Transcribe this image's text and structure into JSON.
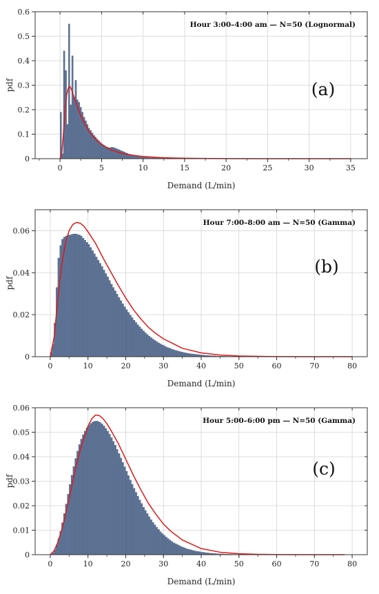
{
  "chart_data": [
    {
      "type": "bar",
      "panel_label": "(a)",
      "title": "Hour 3:00–4:00 am — N=50 (Lognormal)",
      "xlabel": "Demand (L/min)",
      "ylabel": "pdf",
      "xlim": [
        -3,
        37
      ],
      "ylim": [
        0,
        0.6
      ],
      "xticks": [
        0,
        5,
        10,
        15,
        20,
        25,
        30,
        35
      ],
      "yticks": [
        0,
        0.1,
        0.2,
        0.3,
        0.4,
        0.5,
        0.6
      ],
      "ytick_labels": [
        "0",
        "0.1",
        "0.2",
        "0.3",
        "0.4",
        "0.5",
        "0.6"
      ],
      "grid": true,
      "colors": {
        "bars": "#5d7396",
        "bar_edge": "#3f5273",
        "fit": "#e01818"
      },
      "histogram": {
        "bin_width": 0.2,
        "x": [
          0.0,
          0.2,
          0.4,
          0.6,
          0.8,
          1.0,
          1.2,
          1.4,
          1.6,
          1.8,
          2.0,
          2.2,
          2.4,
          2.6,
          2.8,
          3.0,
          3.2,
          3.4,
          3.6,
          3.8,
          4.0,
          4.2,
          4.4,
          4.6,
          4.8,
          5.0,
          5.2,
          5.4,
          5.6,
          5.8,
          6.0,
          6.2,
          6.4,
          6.6,
          6.8,
          7.0,
          7.2,
          7.4,
          7.6,
          7.8,
          8.0,
          8.2,
          8.4,
          8.6,
          8.8,
          9.0,
          9.2,
          9.4,
          9.6,
          9.8,
          10.0,
          10.4,
          10.8,
          11.2,
          11.6,
          12.0,
          12.5,
          13.0,
          13.5,
          14.0,
          15.0,
          16.0
        ],
        "values": [
          0.19,
          0.02,
          0.44,
          0.36,
          0.14,
          0.55,
          0.22,
          0.42,
          0.25,
          0.32,
          0.24,
          0.23,
          0.21,
          0.19,
          0.17,
          0.155,
          0.14,
          0.125,
          0.115,
          0.105,
          0.095,
          0.088,
          0.08,
          0.073,
          0.066,
          0.06,
          0.055,
          0.05,
          0.047,
          0.045,
          0.046,
          0.047,
          0.045,
          0.043,
          0.04,
          0.037,
          0.034,
          0.031,
          0.028,
          0.025,
          0.022,
          0.019,
          0.017,
          0.015,
          0.013,
          0.011,
          0.01,
          0.009,
          0.008,
          0.007,
          0.006,
          0.005,
          0.004,
          0.0035,
          0.003,
          0.0025,
          0.002,
          0.0015,
          0.0012,
          0.001,
          0.0007,
          0.0005
        ]
      },
      "fit": {
        "distribution": "lognormal",
        "x": [
          0.0,
          0.2,
          0.4,
          0.6,
          0.8,
          1.0,
          1.2,
          1.4,
          1.6,
          1.8,
          2.0,
          2.5,
          3.0,
          3.5,
          4.0,
          4.5,
          5.0,
          6.0,
          7.0,
          8.0,
          9.0,
          10.0,
          12.0,
          14.0,
          16.0,
          18.0,
          20.0,
          25.0,
          30.0,
          35.0
        ],
        "y": [
          0.0,
          0.02,
          0.1,
          0.19,
          0.26,
          0.29,
          0.295,
          0.28,
          0.26,
          0.24,
          0.22,
          0.175,
          0.14,
          0.11,
          0.09,
          0.072,
          0.058,
          0.038,
          0.026,
          0.018,
          0.013,
          0.009,
          0.0045,
          0.0024,
          0.0013,
          0.0007,
          0.0004,
          0.0001,
          0.0,
          0.0
        ]
      }
    },
    {
      "type": "bar",
      "panel_label": "(b)",
      "title": "Hour 7:00–8:00 am — N=50 (Gamma)",
      "xlabel": "Demand (L/min)",
      "ylabel": "pdf",
      "xlim": [
        -4,
        84
      ],
      "ylim": [
        0,
        0.07
      ],
      "xticks": [
        0,
        10,
        20,
        30,
        40,
        50,
        60,
        70,
        80
      ],
      "yticks": [
        0,
        0.02,
        0.04,
        0.06
      ],
      "ytick_labels": [
        "0",
        "0.02",
        "0.04",
        "0.06"
      ],
      "grid": true,
      "colors": {
        "bars": "#5d7396",
        "bar_edge": "#3f5273",
        "fit": "#e01818"
      },
      "histogram": {
        "bin_width": 0.5,
        "x": [
          0.0,
          0.5,
          1.0,
          1.5,
          2.0,
          2.5,
          3.0,
          3.5,
          4.0,
          4.5,
          5.0,
          5.5,
          6.0,
          6.5,
          7.0,
          7.5,
          8.0,
          8.5,
          9.0,
          9.5,
          10.0,
          10.5,
          11.0,
          11.5,
          12.0,
          12.5,
          13.0,
          13.5,
          14.0,
          14.5,
          15.0,
          15.5,
          16.0,
          16.5,
          17.0,
          17.5,
          18.0,
          18.5,
          19.0,
          19.5,
          20.0,
          20.5,
          21.0,
          21.5,
          22.0,
          22.5,
          23.0,
          23.5,
          24.0,
          24.5,
          25.0,
          25.5,
          26.0,
          26.5,
          27.0,
          27.5,
          28.0,
          28.5,
          29.0,
          29.5,
          30.0,
          30.5,
          31.0,
          31.5,
          32.0,
          32.5,
          33.0,
          33.5,
          34.0,
          34.5,
          35.0,
          35.5,
          36.0,
          36.5,
          37.0,
          37.5,
          38.0,
          38.5,
          39.0,
          39.5,
          40.0,
          41.0,
          42.0,
          43.0,
          44.0,
          45.0,
          46.0,
          47.0,
          48.0,
          50.0
        ],
        "values": [
          0.002,
          0.006,
          0.016,
          0.033,
          0.047,
          0.053,
          0.056,
          0.057,
          0.0575,
          0.058,
          0.058,
          0.0583,
          0.0585,
          0.0585,
          0.0583,
          0.058,
          0.0575,
          0.0565,
          0.0555,
          0.0545,
          0.0535,
          0.052,
          0.0505,
          0.049,
          0.0475,
          0.046,
          0.0445,
          0.043,
          0.0413,
          0.0396,
          0.038,
          0.0363,
          0.0346,
          0.033,
          0.0314,
          0.0298,
          0.0282,
          0.0267,
          0.0252,
          0.0238,
          0.0224,
          0.0211,
          0.0198,
          0.0186,
          0.0174,
          0.0163,
          0.0152,
          0.0142,
          0.0132,
          0.0123,
          0.0114,
          0.0106,
          0.0098,
          0.0091,
          0.0084,
          0.0078,
          0.0072,
          0.0066,
          0.0061,
          0.0056,
          0.0052,
          0.0047,
          0.0043,
          0.004,
          0.0036,
          0.0033,
          0.003,
          0.0028,
          0.0025,
          0.0023,
          0.0021,
          0.0019,
          0.0017,
          0.0016,
          0.0014,
          0.0013,
          0.0012,
          0.0011,
          0.001,
          0.0009,
          0.0008,
          0.0006,
          0.0005,
          0.0004,
          0.0003,
          0.00025,
          0.0002,
          0.00015,
          0.0001,
          5e-05
        ]
      },
      "fit": {
        "distribution": "gamma",
        "x": [
          0,
          1,
          2,
          3,
          4,
          5,
          6,
          7,
          8,
          9,
          10,
          12,
          14,
          16,
          18,
          20,
          22,
          24,
          26,
          28,
          30,
          35,
          40,
          45,
          50,
          55,
          60,
          70,
          80
        ],
        "y": [
          0.0,
          0.009,
          0.027,
          0.043,
          0.054,
          0.06,
          0.063,
          0.064,
          0.0635,
          0.062,
          0.0595,
          0.054,
          0.047,
          0.0405,
          0.034,
          0.028,
          0.0225,
          0.018,
          0.014,
          0.011,
          0.0085,
          0.004,
          0.0018,
          0.0008,
          0.00035,
          0.00015,
          6e-05,
          1e-05,
          0.0
        ]
      }
    },
    {
      "type": "bar",
      "panel_label": "(c)",
      "title": "Hour 5:00–6:00 pm — N=50 (Gamma)",
      "xlabel": "Demand (L/min)",
      "ylabel": "pdf",
      "xlim": [
        -4,
        84
      ],
      "ylim": [
        0,
        0.06
      ],
      "xticks": [
        0,
        10,
        20,
        30,
        40,
        50,
        60,
        70,
        80
      ],
      "yticks": [
        0,
        0.01,
        0.02,
        0.03,
        0.04,
        0.05,
        0.06
      ],
      "ytick_labels": [
        "0",
        "0.01",
        "0.02",
        "0.03",
        "0.04",
        "0.05",
        "0.06"
      ],
      "grid": true,
      "colors": {
        "bars": "#5d7396",
        "bar_edge": "#3f5273",
        "fit": "#e01818"
      },
      "histogram": {
        "bin_width": 0.5,
        "x": [
          0.0,
          0.5,
          1.0,
          1.5,
          2.0,
          2.5,
          3.0,
          3.5,
          4.0,
          4.5,
          5.0,
          5.5,
          6.0,
          6.5,
          7.0,
          7.5,
          8.0,
          8.5,
          9.0,
          9.5,
          10.0,
          10.5,
          11.0,
          11.5,
          12.0,
          12.5,
          13.0,
          13.5,
          14.0,
          14.5,
          15.0,
          15.5,
          16.0,
          16.5,
          17.0,
          17.5,
          18.0,
          18.5,
          19.0,
          19.5,
          20.0,
          20.5,
          21.0,
          21.5,
          22.0,
          22.5,
          23.0,
          23.5,
          24.0,
          24.5,
          25.0,
          25.5,
          26.0,
          26.5,
          27.0,
          27.5,
          28.0,
          28.5,
          29.0,
          29.5,
          30.0,
          30.5,
          31.0,
          31.5,
          32.0,
          32.5,
          33.0,
          33.5,
          34.0,
          34.5,
          35.0,
          35.5,
          36.0,
          36.5,
          37.0,
          37.5,
          38.0,
          38.5,
          39.0,
          39.5,
          40.0,
          41.0,
          42.0,
          43.0,
          44.0,
          45.0,
          46.0,
          47.0,
          48.0,
          50.0,
          52.0,
          54.0
        ],
        "values": [
          0.0002,
          0.0008,
          0.002,
          0.004,
          0.0065,
          0.0095,
          0.013,
          0.0168,
          0.0207,
          0.0247,
          0.0287,
          0.0325,
          0.036,
          0.0393,
          0.0423,
          0.045,
          0.0472,
          0.049,
          0.0505,
          0.0518,
          0.0528,
          0.0536,
          0.0542,
          0.0545,
          0.0546,
          0.0544,
          0.054,
          0.0534,
          0.0526,
          0.0516,
          0.0505,
          0.0492,
          0.0478,
          0.0463,
          0.0447,
          0.043,
          0.0413,
          0.0395,
          0.0377,
          0.0359,
          0.0341,
          0.0323,
          0.0305,
          0.0288,
          0.0271,
          0.0255,
          0.0239,
          0.0223,
          0.0209,
          0.0194,
          0.0181,
          0.0168,
          0.0155,
          0.0143,
          0.0132,
          0.0122,
          0.0112,
          0.0103,
          0.0094,
          0.0086,
          0.0079,
          0.0072,
          0.0066,
          0.006,
          0.0054,
          0.0049,
          0.0045,
          0.0041,
          0.0037,
          0.0033,
          0.003,
          0.0027,
          0.0024,
          0.0022,
          0.002,
          0.0018,
          0.0016,
          0.0014,
          0.0013,
          0.0012,
          0.001,
          0.0008,
          0.0006,
          0.0005,
          0.0004,
          0.0003,
          0.00025,
          0.0002,
          0.00015,
          0.0001,
          5e-05,
          2e-05
        ]
      },
      "fit": {
        "distribution": "gamma",
        "x": [
          0,
          1,
          2,
          3,
          4,
          5,
          6,
          7,
          8,
          9,
          10,
          11,
          12,
          13,
          14,
          15,
          16,
          18,
          20,
          22,
          24,
          26,
          28,
          30,
          32,
          35,
          40,
          45,
          50,
          55,
          60,
          70,
          78
        ],
        "y": [
          0.0,
          0.0015,
          0.005,
          0.01,
          0.016,
          0.023,
          0.03,
          0.037,
          0.043,
          0.048,
          0.0525,
          0.0555,
          0.057,
          0.0568,
          0.0555,
          0.0535,
          0.051,
          0.0455,
          0.039,
          0.0325,
          0.0265,
          0.021,
          0.0165,
          0.0125,
          0.0095,
          0.006,
          0.0025,
          0.001,
          0.0004,
          0.00015,
          5e-05,
          1e-05,
          0.0
        ]
      }
    }
  ]
}
